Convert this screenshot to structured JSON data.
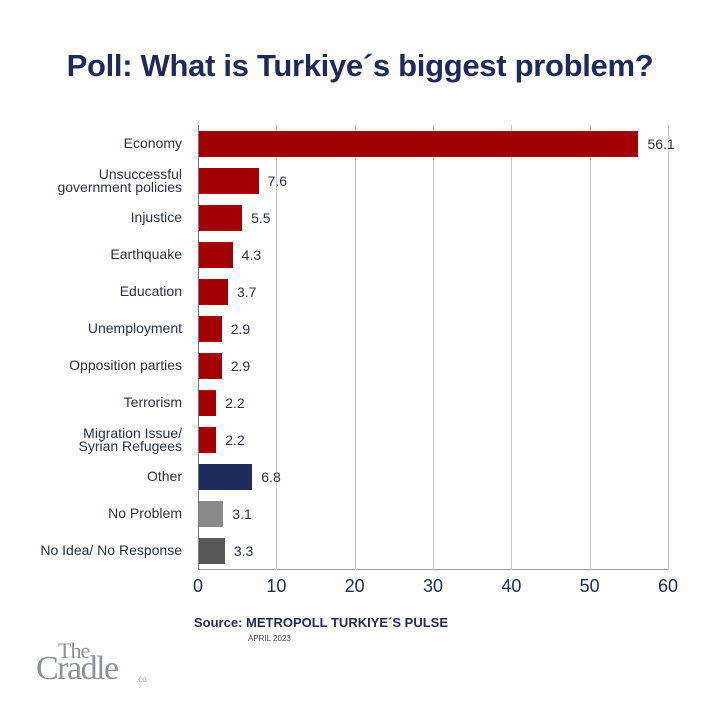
{
  "title": "Poll: What is Turkiye´s biggest problem?",
  "source": "Source: METROPOLL TURKIYE´S PULSE",
  "date": "APRIL 2023",
  "logo": {
    "line1": "The",
    "line2": "Cradle",
    "suffix": ".co"
  },
  "colors": {
    "red": "#a30006",
    "navy": "#1f2a5c",
    "light_gray": "#8a8a8a",
    "dark_gray": "#595959"
  },
  "chart_data": {
    "type": "bar",
    "orientation": "horizontal",
    "title": "Poll: What is Turkiye´s biggest problem?",
    "xlabel": "",
    "ylabel": "",
    "xlim": [
      0,
      60
    ],
    "xticks": [
      0,
      10,
      20,
      30,
      40,
      50,
      60
    ],
    "grid": true,
    "legend": null,
    "categories": [
      "Economy",
      "Unsuccessful government policies",
      "Injustice",
      "Earthquake",
      "Education",
      "Unemployment",
      "Opposition parties",
      "Terrorism",
      "Migration Issue/ Syrian Refugees",
      "Other",
      "No Problem",
      "No Idea/ No Response"
    ],
    "values": [
      56.1,
      7.6,
      5.5,
      4.3,
      3.7,
      2.9,
      2.9,
      2.2,
      2.2,
      6.8,
      3.1,
      3.3
    ],
    "bar_colors": [
      "#a30006",
      "#a30006",
      "#a30006",
      "#a30006",
      "#a30006",
      "#a30006",
      "#a30006",
      "#a30006",
      "#a30006",
      "#1f2a5c",
      "#8a8a8a",
      "#595959"
    ],
    "source": "METROPOLL TURKIYE´S PULSE, APRIL 2023"
  },
  "rows": [
    {
      "label1": "Economy",
      "label2": "",
      "value": "56.1"
    },
    {
      "label1": "Unsuccessful",
      "label2": "government policies",
      "value": "7.6"
    },
    {
      "label1": "Injustice",
      "label2": "",
      "value": "5.5"
    },
    {
      "label1": "Earthquake",
      "label2": "",
      "value": "4.3"
    },
    {
      "label1": "Education",
      "label2": "",
      "value": "3.7"
    },
    {
      "label1": "Unemployment",
      "label2": "",
      "value": "2.9"
    },
    {
      "label1": "Opposition parties",
      "label2": "",
      "value": "2.9"
    },
    {
      "label1": "Terrorism",
      "label2": "",
      "value": "2.2"
    },
    {
      "label1": "Migration Issue/",
      "label2": "Syrian Refugees",
      "value": "2.2"
    },
    {
      "label1": "Other",
      "label2": "",
      "value": "6.8"
    },
    {
      "label1": "No Problem",
      "label2": "",
      "value": "3.1"
    },
    {
      "label1": "No Idea/ No Response",
      "label2": "",
      "value": "3.3"
    }
  ],
  "ticks": [
    "0",
    "10",
    "20",
    "30",
    "40",
    "50",
    "60"
  ]
}
